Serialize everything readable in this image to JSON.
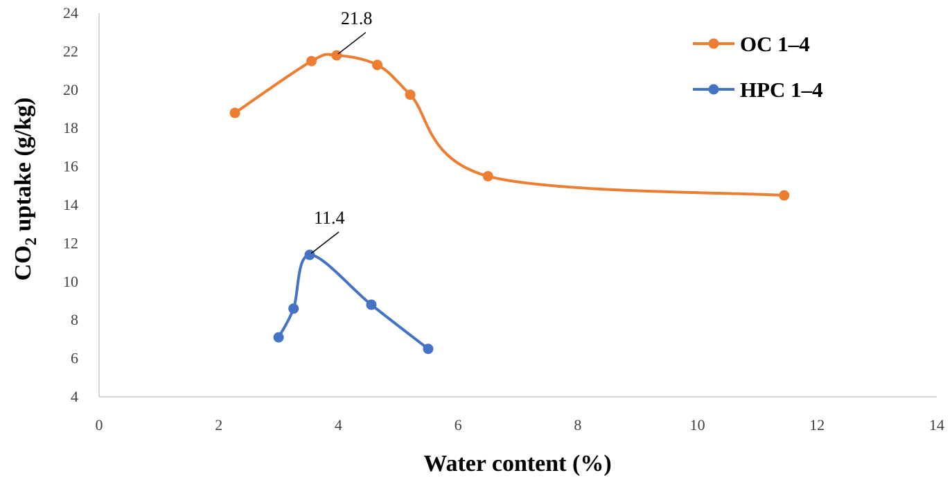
{
  "chart_data": {
    "type": "line",
    "title": "",
    "xlabel": "Water content (%)",
    "ylabel_main": "CO",
    "ylabel_sub": "2",
    "ylabel_rest": " uptake (g/kg)",
    "xlim": [
      0,
      14
    ],
    "ylim": [
      4,
      24
    ],
    "x_ticks": [
      0,
      2,
      4,
      6,
      8,
      10,
      12,
      14
    ],
    "y_ticks": [
      4,
      6,
      8,
      10,
      12,
      14,
      16,
      18,
      20,
      22,
      24
    ],
    "grid": false,
    "legend_position": "top-right",
    "series": [
      {
        "name": "OC 1–4",
        "color": "#ED7D31",
        "x": [
          2.27,
          3.55,
          3.97,
          4.65,
          5.2,
          6.5,
          11.45
        ],
        "y": [
          18.8,
          21.5,
          21.8,
          21.3,
          19.75,
          15.5,
          14.5
        ]
      },
      {
        "name": "HPC 1–4",
        "color": "#4472C4",
        "x": [
          3.0,
          3.25,
          3.52,
          4.55,
          5.5
        ],
        "y": [
          7.1,
          8.6,
          11.4,
          8.8,
          6.5
        ]
      }
    ],
    "annotations": [
      {
        "text": "21.8",
        "x": 3.97,
        "y": 21.8
      },
      {
        "text": "11.4",
        "x": 3.52,
        "y": 11.4
      }
    ]
  }
}
